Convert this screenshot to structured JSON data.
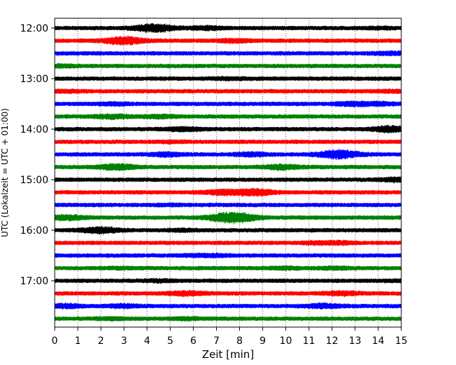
{
  "chart_data": {
    "type": "line",
    "chart_kind": "helicorder",
    "xlabel": "Zeit  [min]",
    "ylabel": "UTC (Lokalzeit = UTC + 01:00)",
    "xlim": [
      0,
      15
    ],
    "x_ticks": [
      0,
      1,
      2,
      3,
      4,
      5,
      6,
      7,
      8,
      9,
      10,
      11,
      12,
      13,
      14,
      15
    ],
    "x_grid": "dotted vertical lines at each minute",
    "y_tick_labels": [
      "12:00",
      "13:00",
      "14:00",
      "15:00",
      "16:00",
      "17:00"
    ],
    "trace_interval_minutes": 15,
    "color_cycle": [
      "#000000",
      "#ff0000",
      "#0000ff",
      "#008000"
    ],
    "traces": [
      {
        "start": "12:00",
        "color": "#000000",
        "bursts": [
          [
            4.3,
            2.4
          ],
          [
            6.6,
            1.5
          ],
          [
            14.1,
            1.2
          ]
        ]
      },
      {
        "start": "12:15",
        "color": "#ff0000",
        "bursts": [
          [
            3.0,
            2.4
          ],
          [
            7.8,
            1.5
          ]
        ]
      },
      {
        "start": "12:30",
        "color": "#0000ff",
        "bursts": [
          [
            14.5,
            1.4
          ]
        ]
      },
      {
        "start": "12:45",
        "color": "#008000",
        "bursts": [
          [
            0.4,
            1.3
          ]
        ]
      },
      {
        "start": "13:00",
        "color": "#000000",
        "bursts": [
          [
            7.6,
            1.3
          ]
        ]
      },
      {
        "start": "13:15",
        "color": "#ff0000",
        "bursts": [
          [
            0.5,
            1.3
          ],
          [
            14.5,
            1.3
          ]
        ]
      },
      {
        "start": "13:30",
        "color": "#0000ff",
        "bursts": [
          [
            2.5,
            1.4
          ],
          [
            12.8,
            1.6
          ],
          [
            14.0,
            1.5
          ]
        ]
      },
      {
        "start": "13:45",
        "color": "#008000",
        "bursts": [
          [
            2.5,
            1.6
          ],
          [
            4.5,
            1.5
          ]
        ]
      },
      {
        "start": "14:00",
        "color": "#000000",
        "bursts": [
          [
            5.6,
            1.6
          ],
          [
            14.5,
            2.0
          ]
        ]
      },
      {
        "start": "14:15",
        "color": "#ff0000",
        "bursts": [
          [
            5.0,
            1.2
          ]
        ]
      },
      {
        "start": "14:30",
        "color": "#0000ff",
        "bursts": [
          [
            4.8,
            1.6
          ],
          [
            8.5,
            1.6
          ],
          [
            12.3,
            2.5
          ]
        ]
      },
      {
        "start": "14:45",
        "color": "#008000",
        "bursts": [
          [
            2.7,
            2.0
          ],
          [
            9.8,
            1.8
          ]
        ]
      },
      {
        "start": "15:00",
        "color": "#000000",
        "bursts": [
          [
            14.8,
            1.6
          ]
        ]
      },
      {
        "start": "15:15",
        "color": "#ff0000",
        "bursts": [
          [
            7.2,
            1.8
          ],
          [
            8.6,
            2.2
          ]
        ]
      },
      {
        "start": "15:30",
        "color": "#0000ff",
        "bursts": [
          [
            5.0,
            1.2
          ]
        ]
      },
      {
        "start": "15:45",
        "color": "#008000",
        "bursts": [
          [
            0.5,
            1.8
          ],
          [
            7.7,
            3.0
          ]
        ]
      },
      {
        "start": "16:00",
        "color": "#000000",
        "bursts": [
          [
            2.0,
            2.0
          ],
          [
            5.5,
            1.3
          ]
        ]
      },
      {
        "start": "16:15",
        "color": "#ff0000",
        "bursts": [
          [
            11.3,
            1.3
          ],
          [
            12.3,
            1.4
          ]
        ]
      },
      {
        "start": "16:30",
        "color": "#0000ff",
        "bursts": [
          [
            6.0,
            1.3
          ],
          [
            7.0,
            1.3
          ]
        ]
      },
      {
        "start": "16:45",
        "color": "#008000",
        "bursts": [
          [
            3.0,
            1.2
          ],
          [
            10.0,
            1.3
          ],
          [
            12.2,
            1.3
          ]
        ]
      },
      {
        "start": "17:00",
        "color": "#000000",
        "bursts": [
          [
            4.5,
            1.3
          ],
          [
            14.8,
            1.2
          ]
        ]
      },
      {
        "start": "17:15",
        "color": "#ff0000",
        "bursts": [
          [
            5.7,
            1.7
          ],
          [
            12.4,
            1.6
          ]
        ]
      },
      {
        "start": "17:30",
        "color": "#0000ff",
        "bursts": [
          [
            0.5,
            1.6
          ],
          [
            3.0,
            1.5
          ],
          [
            11.6,
            1.7
          ]
        ]
      },
      {
        "start": "17:45",
        "color": "#008000",
        "bursts": [
          [
            2.5,
            1.3
          ],
          [
            5.7,
            1.3
          ]
        ]
      }
    ]
  }
}
